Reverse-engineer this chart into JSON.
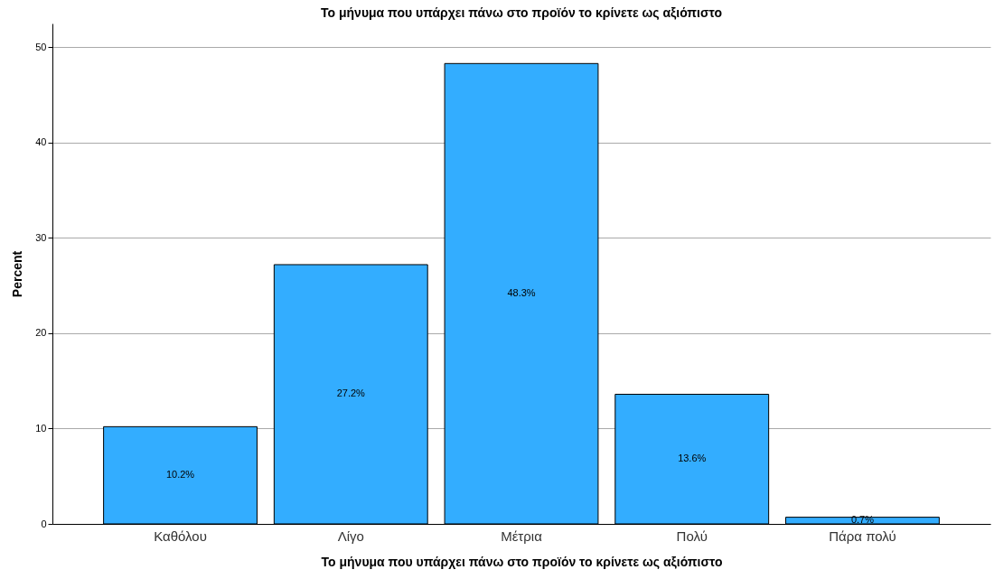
{
  "chart_data": {
    "type": "bar",
    "title": "Το μήνυμα που υπάρχει πάνω στο προϊόν το κρίνετε ως αξιόπιστο",
    "xlabel": "Το μήνυμα που υπάρχει πάνω στο προϊόν το κρίνετε ως αξιόπιστο",
    "ylabel": "Percent",
    "categories": [
      "Καθόλου",
      "Λίγο",
      "Μέτρια",
      "Πολύ",
      "Πάρα πολύ"
    ],
    "values": [
      10.2,
      27.2,
      48.3,
      13.6,
      0.7
    ],
    "value_labels": [
      "10.2%",
      "27.2%",
      "48.3%",
      "13.6%",
      "0.7%"
    ],
    "color": "#33adff",
    "ylim": [
      0,
      52.5
    ],
    "yticks": [
      0,
      10,
      20,
      30,
      40,
      50
    ],
    "grid": "y"
  }
}
